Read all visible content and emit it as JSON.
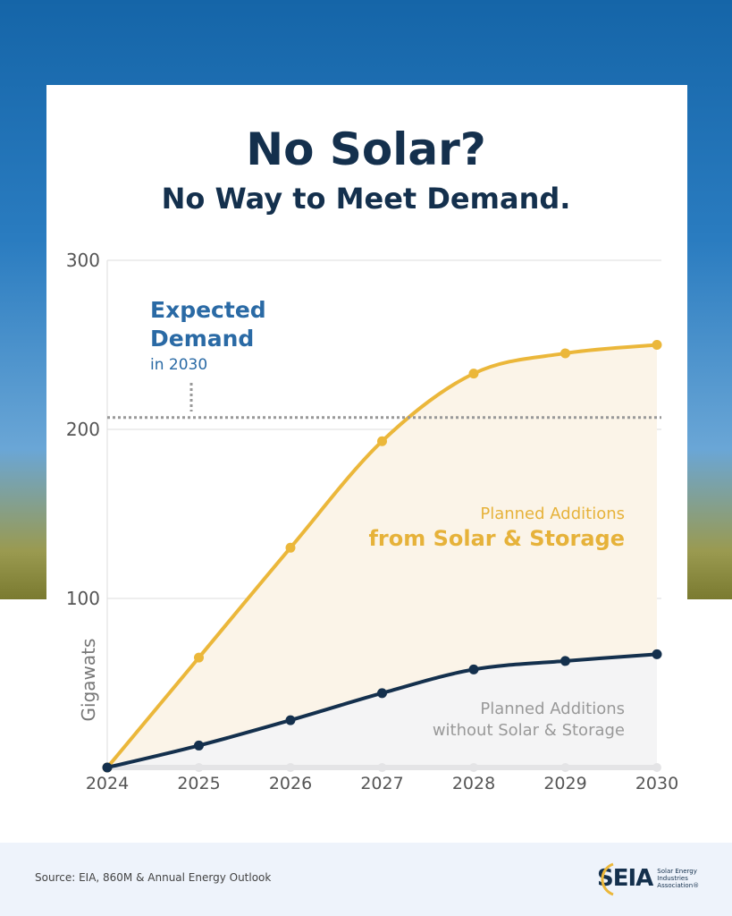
{
  "header": {
    "title": "No Solar?",
    "subtitle": "No Way to Meet Demand."
  },
  "chart_data": {
    "type": "area",
    "x": [
      2024,
      2025,
      2026,
      2027,
      2028,
      2029,
      2030
    ],
    "ylabel": "Gigawats",
    "ylim": [
      0,
      300
    ],
    "yticks": [
      100,
      200,
      300
    ],
    "grid": true,
    "series": [
      {
        "name": "Planned Additions from Solar & Storage",
        "values": [
          0,
          65,
          130,
          193,
          233,
          245,
          250
        ],
        "color": "#ebb73a",
        "fill": "#fbf4e8"
      },
      {
        "name": "Planned Additions without Solar & Storage",
        "values": [
          0,
          13,
          28,
          44,
          58,
          63,
          67
        ],
        "color": "#14304d",
        "fill": "#f4f4f5"
      }
    ],
    "reference_line": {
      "value": 207,
      "label_line1": "Expected",
      "label_line2": "Demand",
      "label_line3": "in 2030",
      "color": "#2a6aa5"
    },
    "annotations": {
      "solar_line1": "Planned Additions",
      "solar_line2": "from Solar & Storage",
      "nosolar_line1": "Planned Additions",
      "nosolar_line2": "without Solar & Storage"
    }
  },
  "footer": {
    "source": "Source: EIA, 860M & Annual Energy Outlook",
    "logo_text": "SEIA",
    "logo_sub": "Solar Energy Industries Association®"
  }
}
